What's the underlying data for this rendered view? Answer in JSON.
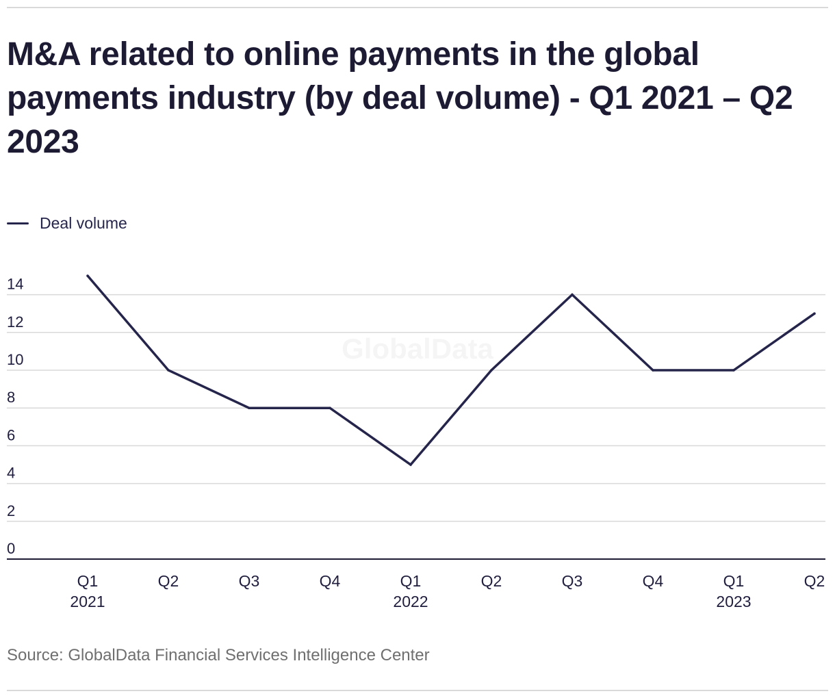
{
  "header": {
    "title": "M&A related to online payments in the global payments industry (by deal volume) - Q1 2021 – Q2 2023"
  },
  "footer": {
    "source": "Source: GlobalData Financial Services Intelligence Center"
  },
  "watermark": "GlobalData",
  "colors": {
    "line": "#25244a",
    "grid": "#d9d9d9",
    "axis": "#1c1b33",
    "text": "#1f1d3d"
  },
  "chart_data": {
    "type": "line",
    "title": "M&A related to online payments in the global payments industry (by deal volume) - Q1 2021 – Q2 2023",
    "xlabel": "",
    "ylabel": "",
    "categories": [
      "Q1 2021",
      "Q2 2021",
      "Q3 2021",
      "Q4 2021",
      "Q1 2022",
      "Q2 2022",
      "Q3 2022",
      "Q4 2022",
      "Q1 2023",
      "Q2 2023"
    ],
    "tick_labels": [
      {
        "quarter": "Q1",
        "year": "2021"
      },
      {
        "quarter": "Q2",
        "year": ""
      },
      {
        "quarter": "Q3",
        "year": ""
      },
      {
        "quarter": "Q4",
        "year": ""
      },
      {
        "quarter": "Q1",
        "year": "2022"
      },
      {
        "quarter": "Q2",
        "year": ""
      },
      {
        "quarter": "Q3",
        "year": ""
      },
      {
        "quarter": "Q4",
        "year": ""
      },
      {
        "quarter": "Q1",
        "year": "2023"
      },
      {
        "quarter": "Q2",
        "year": ""
      }
    ],
    "series": [
      {
        "name": "Deal volume",
        "values": [
          15,
          10,
          8,
          8,
          5,
          10,
          14,
          10,
          10,
          13
        ]
      }
    ],
    "ylim": [
      0,
      14
    ],
    "yticks": [
      0,
      2,
      4,
      6,
      8,
      10,
      12,
      14
    ],
    "grid": true,
    "legend_position": "top-left"
  }
}
